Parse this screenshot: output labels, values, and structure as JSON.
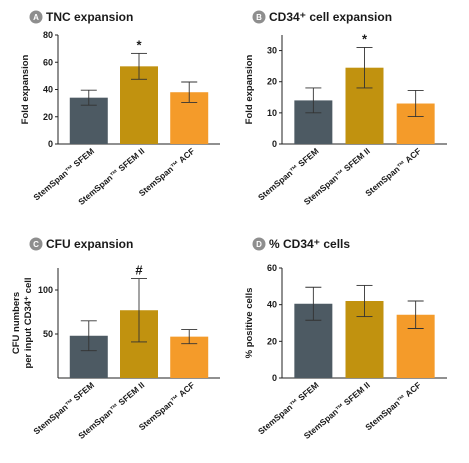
{
  "colors": {
    "SFEM": "#4d5a63",
    "SFEM II": "#c1920f",
    "ACF": "#f49b2a",
    "axis": "#222222",
    "badge": "#8e8e8e"
  },
  "chart_data": [
    {
      "type": "bar",
      "badge": "A",
      "title": "TNC expansion",
      "categories": [
        "StemSpan™ SFEM",
        "StemSpan™ SFEM II",
        "StemSpan™ ACF"
      ],
      "values": [
        34,
        57,
        38
      ],
      "errors": [
        5.5,
        9.5,
        7.5
      ],
      "annotations": [
        "",
        "*",
        ""
      ],
      "ylabel": "Fold expansion",
      "ylim": [
        0,
        80
      ],
      "yticks": [
        0,
        20,
        40,
        60,
        80
      ]
    },
    {
      "type": "bar",
      "badge": "B",
      "title": "CD34⁺ cell expansion",
      "categories": [
        "StemSpan™ SFEM",
        "StemSpan™ SFEM II",
        "StemSpan™ ACF"
      ],
      "values": [
        14,
        24.5,
        13
      ],
      "errors": [
        4,
        6.5,
        4.2
      ],
      "annotations": [
        "",
        "*",
        ""
      ],
      "ylabel": "Fold expansion",
      "ylim": [
        0,
        35
      ],
      "yticks": [
        0,
        10,
        20,
        30
      ]
    },
    {
      "type": "bar",
      "badge": "C",
      "title": "CFU expansion",
      "categories": [
        "StemSpan™ SFEM",
        "StemSpan™ SFEM II",
        "StemSpan™ ACF"
      ],
      "values": [
        48,
        77,
        47
      ],
      "errors": [
        17,
        36,
        8
      ],
      "annotations": [
        "",
        "#",
        ""
      ],
      "ylabel": "CFU numbers",
      "ylabel2": "per input CD34⁺ cell",
      "ylim": [
        0,
        125
      ],
      "yticks": [
        50,
        100
      ]
    },
    {
      "type": "bar",
      "badge": "D",
      "title": "% CD34⁺ cells",
      "categories": [
        "StemSpan™ SFEM",
        "StemSpan™ SFEM II",
        "StemSpan™ ACF"
      ],
      "values": [
        40.5,
        42,
        34.5
      ],
      "errors": [
        9,
        8.5,
        7.5
      ],
      "annotations": [
        "",
        "",
        ""
      ],
      "ylabel": "% positive cells",
      "ylim": [
        0,
        60
      ],
      "yticks": [
        0,
        20,
        40,
        60
      ]
    }
  ]
}
